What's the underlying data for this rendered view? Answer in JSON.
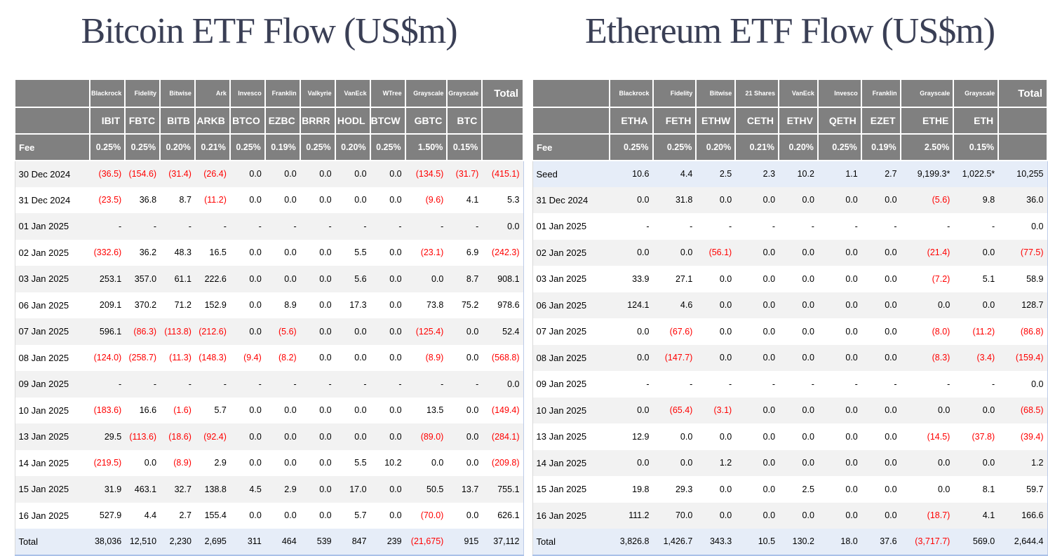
{
  "titles": {
    "bitcoin": "Bitcoin ETF Flow (US$m)",
    "ethereum": "Ethereum ETF Flow (US$m)"
  },
  "colors": {
    "header_bg": "#808080",
    "header_text": "#ffffff",
    "negative_value": "#ff0000",
    "alt_row_bg": "#f2f2f2",
    "highlight_row_bg": "#e6edf8",
    "title_text": "#3a3f55"
  },
  "chart_data": [
    {
      "type": "table",
      "id": "bitcoin",
      "title": "Bitcoin ETF Flow (US$m)",
      "issuers": [
        "Blackrock",
        "Fidelity",
        "Bitwise",
        "Ark",
        "Invesco",
        "Franklin",
        "Valkyrie",
        "VanEck",
        "WTree",
        "Grayscale",
        "Grayscale"
      ],
      "tickers": [
        "IBIT",
        "FBTC",
        "BITB",
        "ARKB",
        "BTCO",
        "EZBC",
        "BRRR",
        "HODL",
        "BTCW",
        "GBTC",
        "BTC"
      ],
      "total_header": "Total",
      "fee_label": "Fee",
      "fees": [
        "0.25%",
        "0.25%",
        "0.20%",
        "0.21%",
        "0.25%",
        "0.19%",
        "0.25%",
        "0.20%",
        "0.25%",
        "1.50%",
        "0.15%"
      ],
      "rows": [
        {
          "label": "30 Dec 2024",
          "values": [
            "(36.5)",
            "(154.6)",
            "(31.4)",
            "(26.4)",
            "0.0",
            "0.0",
            "0.0",
            "0.0",
            "0.0",
            "(134.5)",
            "(31.7)"
          ],
          "total": "(415.1)"
        },
        {
          "label": "31 Dec 2024",
          "values": [
            "(23.5)",
            "36.8",
            "8.7",
            "(11.2)",
            "0.0",
            "0.0",
            "0.0",
            "0.0",
            "0.0",
            "(9.6)",
            "4.1"
          ],
          "total": "5.3"
        },
        {
          "label": "01 Jan 2025",
          "values": [
            "-",
            "-",
            "-",
            "-",
            "-",
            "-",
            "-",
            "-",
            "-",
            "-",
            "-"
          ],
          "total": "0.0"
        },
        {
          "label": "02 Jan 2025",
          "values": [
            "(332.6)",
            "36.2",
            "48.3",
            "16.5",
            "0.0",
            "0.0",
            "0.0",
            "5.5",
            "0.0",
            "(23.1)",
            "6.9"
          ],
          "total": "(242.3)"
        },
        {
          "label": "03 Jan 2025",
          "values": [
            "253.1",
            "357.0",
            "61.1",
            "222.6",
            "0.0",
            "0.0",
            "0.0",
            "5.6",
            "0.0",
            "0.0",
            "8.7"
          ],
          "total": "908.1"
        },
        {
          "label": "06 Jan 2025",
          "values": [
            "209.1",
            "370.2",
            "71.2",
            "152.9",
            "0.0",
            "8.9",
            "0.0",
            "17.3",
            "0.0",
            "73.8",
            "75.2"
          ],
          "total": "978.6"
        },
        {
          "label": "07 Jan 2025",
          "values": [
            "596.1",
            "(86.3)",
            "(113.8)",
            "(212.6)",
            "0.0",
            "(5.6)",
            "0.0",
            "0.0",
            "0.0",
            "(125.4)",
            "0.0"
          ],
          "total": "52.4"
        },
        {
          "label": "08 Jan 2025",
          "values": [
            "(124.0)",
            "(258.7)",
            "(11.3)",
            "(148.3)",
            "(9.4)",
            "(8.2)",
            "0.0",
            "0.0",
            "0.0",
            "(8.9)",
            "0.0"
          ],
          "total": "(568.8)"
        },
        {
          "label": "09 Jan 2025",
          "values": [
            "-",
            "-",
            "-",
            "-",
            "-",
            "-",
            "-",
            "-",
            "-",
            "-",
            "-"
          ],
          "total": "0.0"
        },
        {
          "label": "10 Jan 2025",
          "values": [
            "(183.6)",
            "16.6",
            "(1.6)",
            "5.7",
            "0.0",
            "0.0",
            "0.0",
            "0.0",
            "0.0",
            "13.5",
            "0.0"
          ],
          "total": "(149.4)"
        },
        {
          "label": "13 Jan 2025",
          "values": [
            "29.5",
            "(113.6)",
            "(18.6)",
            "(92.4)",
            "0.0",
            "0.0",
            "0.0",
            "0.0",
            "0.0",
            "(89.0)",
            "0.0"
          ],
          "total": "(284.1)"
        },
        {
          "label": "14 Jan 2025",
          "values": [
            "(219.5)",
            "0.0",
            "(8.9)",
            "2.9",
            "0.0",
            "0.0",
            "0.0",
            "5.5",
            "10.2",
            "0.0",
            "0.0"
          ],
          "total": "(209.8)"
        },
        {
          "label": "15 Jan 2025",
          "values": [
            "31.9",
            "463.1",
            "32.7",
            "138.8",
            "4.5",
            "2.9",
            "0.0",
            "17.0",
            "0.0",
            "50.5",
            "13.7"
          ],
          "total": "755.1"
        },
        {
          "label": "16 Jan 2025",
          "values": [
            "527.9",
            "4.4",
            "2.7",
            "155.4",
            "0.0",
            "0.0",
            "0.0",
            "5.7",
            "0.0",
            "(70.0)",
            "0.0"
          ],
          "total": "626.1"
        }
      ],
      "total_row": {
        "label": "Total",
        "values": [
          "38,036",
          "12,510",
          "2,230",
          "2,695",
          "311",
          "464",
          "539",
          "847",
          "239",
          "(21,675)",
          "915"
        ],
        "total": "37,112"
      }
    },
    {
      "type": "table",
      "id": "ethereum",
      "title": "Ethereum ETF Flow (US$m)",
      "issuers": [
        "Blackrock",
        "Fidelity",
        "Bitwise",
        "21 Shares",
        "VanEck",
        "Invesco",
        "Franklin",
        "Grayscale",
        "Grayscale"
      ],
      "tickers": [
        "ETHA",
        "FETH",
        "ETHW",
        "CETH",
        "ETHV",
        "QETH",
        "EZET",
        "ETHE",
        "ETH"
      ],
      "total_header": "Total",
      "fee_label": "Fee",
      "fees": [
        "0.25%",
        "0.25%",
        "0.20%",
        "0.21%",
        "0.20%",
        "0.25%",
        "0.19%",
        "2.50%",
        "0.15%"
      ],
      "rows": [
        {
          "label": "Seed",
          "highlight": true,
          "values": [
            "10.6",
            "4.4",
            "2.5",
            "2.3",
            "10.2",
            "1.1",
            "2.7",
            "9,199.3*",
            "1,022.5*"
          ],
          "total": "10,255"
        },
        {
          "label": "31 Dec 2024",
          "values": [
            "0.0",
            "31.8",
            "0.0",
            "0.0",
            "0.0",
            "0.0",
            "0.0",
            "(5.6)",
            "9.8"
          ],
          "total": "36.0"
        },
        {
          "label": "01 Jan 2025",
          "values": [
            "-",
            "-",
            "-",
            "-",
            "-",
            "-",
            "-",
            "-",
            "-"
          ],
          "total": "0.0"
        },
        {
          "label": "02 Jan 2025",
          "values": [
            "0.0",
            "0.0",
            "(56.1)",
            "0.0",
            "0.0",
            "0.0",
            "0.0",
            "(21.4)",
            "0.0"
          ],
          "total": "(77.5)"
        },
        {
          "label": "03 Jan 2025",
          "values": [
            "33.9",
            "27.1",
            "0.0",
            "0.0",
            "0.0",
            "0.0",
            "0.0",
            "(7.2)",
            "5.1"
          ],
          "total": "58.9"
        },
        {
          "label": "06 Jan 2025",
          "values": [
            "124.1",
            "4.6",
            "0.0",
            "0.0",
            "0.0",
            "0.0",
            "0.0",
            "0.0",
            "0.0"
          ],
          "total": "128.7"
        },
        {
          "label": "07 Jan 2025",
          "values": [
            "0.0",
            "(67.6)",
            "0.0",
            "0.0",
            "0.0",
            "0.0",
            "0.0",
            "(8.0)",
            "(11.2)"
          ],
          "total": "(86.8)"
        },
        {
          "label": "08 Jan 2025",
          "values": [
            "0.0",
            "(147.7)",
            "0.0",
            "0.0",
            "0.0",
            "0.0",
            "0.0",
            "(8.3)",
            "(3.4)"
          ],
          "total": "(159.4)"
        },
        {
          "label": "09 Jan 2025",
          "values": [
            "-",
            "-",
            "-",
            "-",
            "-",
            "-",
            "-",
            "-",
            "-"
          ],
          "total": "0.0"
        },
        {
          "label": "10 Jan 2025",
          "values": [
            "0.0",
            "(65.4)",
            "(3.1)",
            "0.0",
            "0.0",
            "0.0",
            "0.0",
            "0.0",
            "0.0"
          ],
          "total": "(68.5)"
        },
        {
          "label": "13 Jan 2025",
          "values": [
            "12.9",
            "0.0",
            "0.0",
            "0.0",
            "0.0",
            "0.0",
            "0.0",
            "(14.5)",
            "(37.8)"
          ],
          "total": "(39.4)"
        },
        {
          "label": "14 Jan 2025",
          "values": [
            "0.0",
            "0.0",
            "1.2",
            "0.0",
            "0.0",
            "0.0",
            "0.0",
            "0.0",
            "0.0"
          ],
          "total": "1.2"
        },
        {
          "label": "15 Jan 2025",
          "values": [
            "19.8",
            "29.3",
            "0.0",
            "0.0",
            "2.5",
            "0.0",
            "0.0",
            "0.0",
            "8.1"
          ],
          "total": "59.7"
        },
        {
          "label": "16 Jan 2025",
          "values": [
            "111.2",
            "70.0",
            "0.0",
            "0.0",
            "0.0",
            "0.0",
            "0.0",
            "(18.7)",
            "4.1"
          ],
          "total": "166.6"
        }
      ],
      "total_row": {
        "label": "Total",
        "values": [
          "3,826.8",
          "1,426.7",
          "343.3",
          "10.5",
          "130.2",
          "18.0",
          "37.6",
          "(3,717.7)",
          "569.0"
        ],
        "total": "2,644.4"
      }
    }
  ]
}
